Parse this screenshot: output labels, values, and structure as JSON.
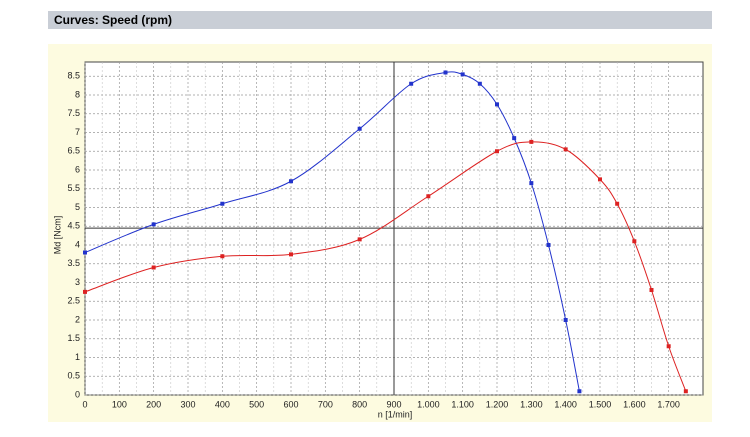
{
  "header": {
    "title": "Curves: Speed (rpm)"
  },
  "chart_data": {
    "type": "line",
    "xlabel": "n [1/min]",
    "ylabel": "Md [Ncm]",
    "xlim": [
      0,
      1800
    ],
    "ylim": [
      0,
      8.88
    ],
    "xticks": [
      0,
      100,
      200,
      300,
      400,
      500,
      600,
      700,
      800,
      900,
      {
        "value": 1000,
        "label": "1.000"
      },
      {
        "value": 1100,
        "label": "1.100"
      },
      {
        "value": 1200,
        "label": "1.200"
      },
      {
        "value": 1300,
        "label": "1.300"
      },
      {
        "value": 1400,
        "label": "1.400"
      },
      {
        "value": 1500,
        "label": "1.500"
      },
      {
        "value": 1600,
        "label": "1.600"
      },
      {
        "value": 1700,
        "label": "1.700"
      }
    ],
    "yticks": [
      0,
      0.5,
      1,
      1.5,
      2,
      2.5,
      3,
      3.5,
      4,
      4.5,
      5,
      5.5,
      6,
      6.5,
      7,
      7.5,
      8,
      8.5
    ],
    "grid": true,
    "cursor": [
      900,
      4.45
    ],
    "series": [
      {
        "color": "#2233cc",
        "x": [
          0,
          200,
          400,
          600,
          800,
          950,
          1050,
          1100,
          1150,
          1200,
          1250,
          1300,
          1350,
          1400,
          1440
        ],
        "values": [
          3.8,
          4.55,
          5.1,
          5.7,
          7.1,
          8.3,
          8.6,
          8.55,
          8.3,
          7.75,
          6.85,
          5.65,
          4.0,
          2.0,
          0.1
        ]
      },
      {
        "color": "#dd2222",
        "x": [
          0,
          200,
          400,
          600,
          800,
          1000,
          1200,
          1300,
          1400,
          1500,
          1550,
          1600,
          1650,
          1700,
          1750
        ],
        "values": [
          2.75,
          3.4,
          3.7,
          3.75,
          4.15,
          5.3,
          6.5,
          6.75,
          6.55,
          5.75,
          5.1,
          4.1,
          2.8,
          1.3,
          0.1
        ]
      }
    ]
  }
}
